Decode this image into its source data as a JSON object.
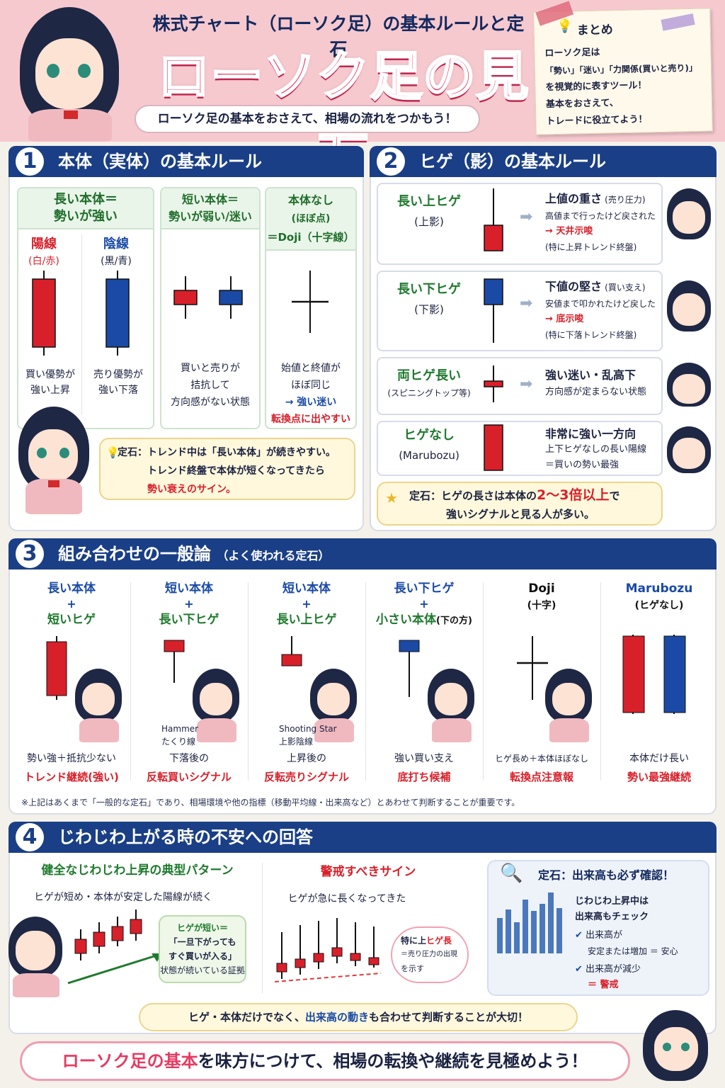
{
  "header": {
    "subtitle": "株式チャート（ローソク足）の基本ルールと定石",
    "title": "ローソク足の見方",
    "tagline": "ローソク足の基本をおさえて、相場の流れをつかもう！",
    "summary": {
      "heading": "まとめ",
      "lines": [
        "ローソク足は",
        "「勢い」「迷い」「力関係(買いと売り)」",
        "を視覚的に表すツール！",
        "基本をおさえて、",
        "トレードに役立てよう！"
      ]
    }
  },
  "section1": {
    "number": "1",
    "title": "本体（実体）の基本ルール",
    "long_body": {
      "heading_line1": "長い本体＝",
      "heading_line2": "勢いが強い",
      "yang_label": "陽線",
      "yang_sub": "(白/赤)",
      "yin_label": "陰線",
      "yin_sub": "(黒/青)",
      "yang_desc1": "買い優勢が",
      "yang_desc2": "強い上昇",
      "yin_desc1": "売り優勢が",
      "yin_desc2": "強い下落"
    },
    "short_body": {
      "heading_line1": "短い本体＝",
      "heading_line2": "勢いが弱い/迷い",
      "desc1": "買いと売りが",
      "desc2": "拮抗して",
      "desc3": "方向感がない状態"
    },
    "no_body": {
      "heading_line1": "本体なし",
      "heading_line2": "(ほぼ点)",
      "heading_line3": "＝Doji（十字線）",
      "desc1": "始値と終値が",
      "desc2": "ほぼ同じ",
      "desc3": "→ 強い迷い",
      "desc4": "転換点に出やすい"
    },
    "tip": {
      "line1": "定石：トレンド中は「長い本体」が続きやすい。",
      "line2": "トレンド終盤で本体が短くなってきたら",
      "line3": "勢い衰えのサイン。"
    }
  },
  "section2": {
    "number": "2",
    "title": "ヒゲ（影）の基本ルール",
    "rows": [
      {
        "name": "長い上ヒゲ",
        "sub": "(上影)",
        "head": "上値の重さ",
        "head_note": "(売り圧力)",
        "desc": "高値まで行ったけど戻された",
        "signal": "→ 天井示唆",
        "note": "(特に上昇トレンド終盤)"
      },
      {
        "name": "長い下ヒゲ",
        "sub": "(下影)",
        "head": "下値の堅さ",
        "head_note": "(買い支え)",
        "desc": "安値まで叩かれたけど戻した",
        "signal": "→ 底示唆",
        "note": "(特に下落トレンド終盤)"
      },
      {
        "name": "両ヒゲ長い",
        "sub": "(スピニングトップ等)",
        "head": "強い迷い・乱高下",
        "head_note": "",
        "desc": "方向感が定まらない状態",
        "signal": "",
        "note": ""
      },
      {
        "name": "ヒゲなし",
        "sub": "(Marubozu)",
        "head": "非常に強い一方向",
        "head_note": "",
        "desc": "上下ヒゲなしの長い陽線",
        "signal": "",
        "note": "＝買いの勢い最強"
      }
    ],
    "tip": {
      "line1_pre": "定石：ヒゲの長さは本体の",
      "line1_em": "2〜3倍以上",
      "line1_post": "で",
      "line2": "強いシグナルと見る人が多い。"
    }
  },
  "section3": {
    "number": "3",
    "title": "組み合わせの一般論",
    "title_note": "（よく使われる定石）",
    "columns": [
      {
        "h1": "長い本体",
        "plus": "+",
        "h2": "短いヒゲ",
        "extra": "",
        "name": "",
        "name2": "",
        "desc": "勢い強＋抵抗少ない",
        "signal": "トレンド継続(強い)"
      },
      {
        "h1": "短い本体",
        "plus": "+",
        "h2": "長い下ヒゲ",
        "extra": "",
        "name": "Hammer",
        "name2": "たくり線",
        "desc": "下落後の",
        "signal": "反転買いシグナル"
      },
      {
        "h1": "短い本体",
        "plus": "+",
        "h2": "長い上ヒゲ",
        "extra": "",
        "name": "Shooting Star",
        "name2": "上影陰線",
        "desc": "上昇後の",
        "signal": "反転売りシグナル"
      },
      {
        "h1": "長い下ヒゲ",
        "plus": "+",
        "h2": "小さい本体",
        "extra": "(下の方)",
        "name": "",
        "name2": "",
        "desc": "強い買い支え",
        "signal": "底打ち候補"
      },
      {
        "h1": "Doji",
        "plus": "",
        "h2": "(十字)",
        "extra": "",
        "name": "",
        "name2": "",
        "desc": "ヒゲ長め＋本体ほぼなし",
        "signal": "転換点注意報"
      },
      {
        "h1": "Marubozu",
        "plus": "",
        "h2": "(ヒゲなし)",
        "extra": "",
        "name": "",
        "name2": "",
        "desc": "本体だけ長い",
        "signal": "勢い最強継続"
      }
    ],
    "note": "※上記はあくまで「一般的な定石」であり、相場環境や他の指標（移動平均線・出来高など）とあわせて判断することが重要です。"
  },
  "section4": {
    "number": "4",
    "title": "じわじわ上がる時の不安への回答",
    "healthy": {
      "heading": "健全なじわじわ上昇の典型パターン",
      "desc": "ヒゲが短め・本体が安定した陽線が続く",
      "bubble1": "ヒゲが短い＝",
      "bubble2": "「一旦下がっても",
      "bubble3": "すぐ買いが入る」",
      "bubble4": "状態が続いている証拠"
    },
    "warning": {
      "heading": "警戒すべきサイン",
      "desc": "ヒゲが急に長くなってきた",
      "bubble1_pre": "特に上",
      "bubble1_em": "ヒゲ長",
      "bubble2": "＝売り圧力の出現",
      "bubble3": "を示す"
    },
    "volume": {
      "heading": "定石：出来高も必ず確認！",
      "line1": "じわじわ上昇中は",
      "line2": "出来高もチェック",
      "check1a": "出来高が",
      "check1b": "安定または増加 ＝ 安心",
      "check2a": "出来高が減少",
      "check2b": "＝ 警戒"
    },
    "bottom_pre": "ヒゲ・本体だけでなく、",
    "bottom_em": "出来高の動き",
    "bottom_post": "も合わせて判断することが大切！"
  },
  "footer": {
    "pre": "ローソク足の基本",
    "post": "を味方につけて、相場の転換や継続を見極めよう！"
  },
  "colors": {
    "yang": "#d8202a",
    "yin": "#1a4aa6",
    "navy": "#1a3f86",
    "pink": "#e63a62"
  }
}
